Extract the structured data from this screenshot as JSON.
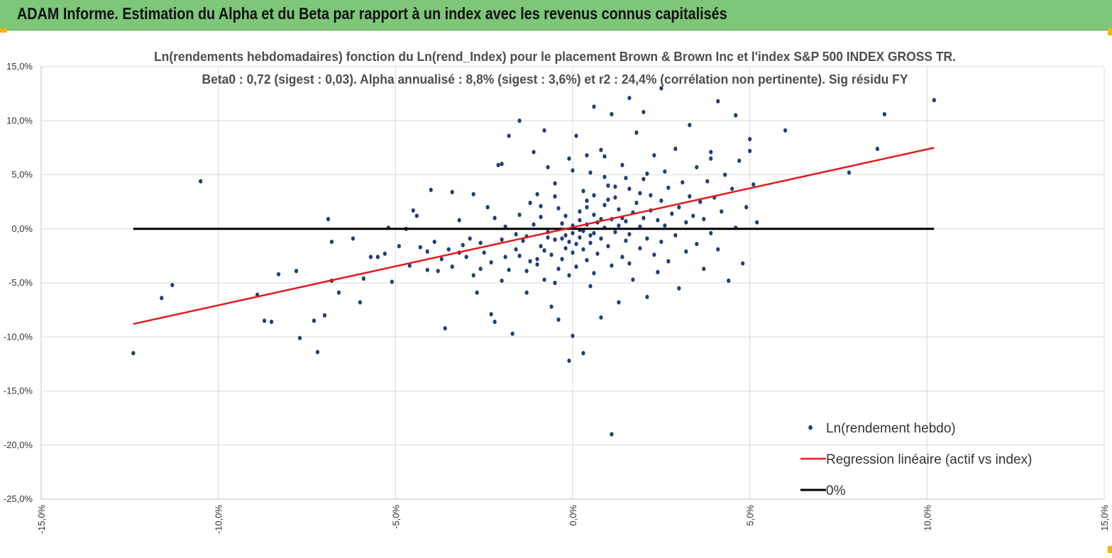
{
  "banner": {
    "title": "ADAM Informe. Estimation du Alpha et du Beta par rapport à un index avec les revenus connus capitalisés"
  },
  "colors": {
    "banner_bg": "#7dc67a",
    "accent_corner": "#f2b800",
    "scatter": "#1f3f78",
    "regression": "#e31a1c",
    "zero_line": "#000000",
    "grid": "#d9d9d9"
  },
  "chart_data": {
    "type": "scatter",
    "title": "Ln(rendements hebdomadaires) fonction du Ln(rend_Index) pour le placement Brown & Brown Inc et l'index S&P 500 INDEX GROSS TR.",
    "subtitle": "Beta0 : 0,72  (sigest : 0,03). Alpha annualisé : 8,8% (sigest : 3,6%) et r2 : 24,4% (corrélation non pertinente). Sig résidu FY",
    "xlabel": "",
    "ylabel": "",
    "xlim": [
      -15,
      15
    ],
    "ylim": [
      -25,
      15
    ],
    "x_ticks": [
      "-15,0%",
      "-10,0%",
      "-5,0%",
      "0,0%",
      "5,0%",
      "10,0%",
      "15,0%"
    ],
    "y_ticks": [
      "15,0%",
      "10,0%",
      "5,0%",
      "0,0%",
      "-5,0%",
      "-10,0%",
      "-15,0%",
      "-20,0%",
      "-25,0%"
    ],
    "grid": "vertical and horizontal",
    "legend_position": "bottom-right",
    "series": [
      {
        "name": "Ln(rendement hebdo)",
        "kind": "scatter",
        "points": [
          [
            -12.4,
            -11.5
          ],
          [
            -11.6,
            -6.4
          ],
          [
            -11.3,
            -5.2
          ],
          [
            -10.5,
            4.4
          ],
          [
            -8.9,
            -6.1
          ],
          [
            -8.7,
            -8.5
          ],
          [
            -8.5,
            -8.6
          ],
          [
            -8.3,
            -4.2
          ],
          [
            -7.8,
            -3.9
          ],
          [
            -7.7,
            -10.1
          ],
          [
            -7.3,
            -8.5
          ],
          [
            -7.2,
            -11.4
          ],
          [
            -7.0,
            -8.0
          ],
          [
            -6.9,
            0.9
          ],
          [
            -6.8,
            -1.2
          ],
          [
            -6.8,
            -4.8
          ],
          [
            -6.6,
            -5.9
          ],
          [
            -6.2,
            -0.9
          ],
          [
            -6.0,
            -6.8
          ],
          [
            -5.9,
            -4.6
          ],
          [
            -5.7,
            -2.6
          ],
          [
            -5.5,
            -2.6
          ],
          [
            -5.3,
            -2.3
          ],
          [
            -5.2,
            0.1
          ],
          [
            -5.1,
            -4.9
          ],
          [
            -4.9,
            -1.6
          ],
          [
            -4.7,
            0.0
          ],
          [
            -4.6,
            -3.4
          ],
          [
            -4.5,
            1.7
          ],
          [
            -4.3,
            -1.7
          ],
          [
            -4.1,
            -2.1
          ],
          [
            -4.1,
            -3.8
          ],
          [
            -4.0,
            3.6
          ],
          [
            -3.9,
            -1.2
          ],
          [
            -3.8,
            -3.9
          ],
          [
            -3.7,
            -2.8
          ],
          [
            -3.6,
            -9.2
          ],
          [
            -3.5,
            -1.9
          ],
          [
            -3.4,
            -3.5
          ],
          [
            -3.2,
            0.8
          ],
          [
            -3.2,
            -2.2
          ],
          [
            -3.0,
            -2.6
          ],
          [
            -2.9,
            -0.9
          ],
          [
            -2.8,
            3.2
          ],
          [
            -2.8,
            -4.3
          ],
          [
            -2.7,
            -5.9
          ],
          [
            -2.6,
            -1.3
          ],
          [
            -2.5,
            -2.2
          ],
          [
            -2.4,
            2.0
          ],
          [
            -2.3,
            -7.9
          ],
          [
            -2.3,
            -3.1
          ],
          [
            -2.2,
            -8.6
          ],
          [
            -2.0,
            -4.8
          ],
          [
            -1.9,
            -2.6
          ],
          [
            -1.9,
            0.2
          ],
          [
            -1.8,
            -3.8
          ],
          [
            -1.7,
            -9.7
          ],
          [
            -1.6,
            -1.9
          ],
          [
            -1.5,
            10.0
          ],
          [
            -1.5,
            -2.5
          ],
          [
            -1.4,
            -1.1
          ],
          [
            -1.3,
            -0.7
          ],
          [
            -1.3,
            -5.9
          ],
          [
            -1.2,
            2.4
          ],
          [
            -1.2,
            -3.0
          ],
          [
            -1.1,
            7.1
          ],
          [
            -1.0,
            -2.8
          ],
          [
            -1.0,
            -3.3
          ],
          [
            -0.9,
            1.1
          ],
          [
            -0.9,
            -1.6
          ],
          [
            -0.8,
            -2.0
          ],
          [
            -0.8,
            -4.7
          ],
          [
            -0.7,
            -0.8
          ],
          [
            -0.7,
            5.7
          ],
          [
            -0.6,
            -2.4
          ],
          [
            -0.6,
            -7.2
          ],
          [
            -0.5,
            3.0
          ],
          [
            -0.5,
            -1.0
          ],
          [
            -0.4,
            -3.7
          ],
          [
            -0.4,
            -8.4
          ],
          [
            -0.3,
            0.5
          ],
          [
            -0.3,
            -2.8
          ],
          [
            -0.2,
            1.2
          ],
          [
            -0.2,
            -0.6
          ],
          [
            -0.2,
            -1.8
          ],
          [
            -0.1,
            6.5
          ],
          [
            -0.1,
            -1.2
          ],
          [
            -0.1,
            -4.3
          ],
          [
            0.0,
            0.3
          ],
          [
            0.0,
            -0.4
          ],
          [
            0.0,
            -2.2
          ],
          [
            0.1,
            8.6
          ],
          [
            0.1,
            -1.4
          ],
          [
            0.1,
            -3.5
          ],
          [
            0.2,
            1.6
          ],
          [
            0.2,
            0.8
          ],
          [
            0.2,
            -0.8
          ],
          [
            0.3,
            3.5
          ],
          [
            0.3,
            -0.2
          ],
          [
            0.3,
            -1.9
          ],
          [
            0.4,
            2.6
          ],
          [
            0.4,
            0.4
          ],
          [
            0.4,
            -2.9
          ],
          [
            0.5,
            5.2
          ],
          [
            0.5,
            -0.6
          ],
          [
            0.5,
            -1.3
          ],
          [
            0.6,
            1.3
          ],
          [
            0.6,
            -4.1
          ],
          [
            0.7,
            0.6
          ],
          [
            0.7,
            -2.3
          ],
          [
            0.8,
            7.3
          ],
          [
            0.8,
            -0.9
          ],
          [
            0.8,
            -8.2
          ],
          [
            0.9,
            2.2
          ],
          [
            0.9,
            0.1
          ],
          [
            1.0,
            4.0
          ],
          [
            1.0,
            -1.6
          ],
          [
            1.1,
            0.9
          ],
          [
            1.1,
            -3.4
          ],
          [
            1.2,
            2.9
          ],
          [
            1.2,
            -0.3
          ],
          [
            1.3,
            1.8
          ],
          [
            1.3,
            -6.8
          ],
          [
            1.4,
            5.9
          ],
          [
            1.4,
            -2.6
          ],
          [
            1.5,
            0.7
          ],
          [
            1.5,
            -1.1
          ],
          [
            1.6,
            3.7
          ],
          [
            1.6,
            -0.5
          ],
          [
            1.7,
            1.5
          ],
          [
            1.7,
            -4.7
          ],
          [
            1.8,
            2.4
          ],
          [
            1.8,
            8.9
          ],
          [
            1.9,
            0.2
          ],
          [
            1.9,
            -1.8
          ],
          [
            2.0,
            4.6
          ],
          [
            2.0,
            1.0
          ],
          [
            2.1,
            -0.9
          ],
          [
            2.1,
            -6.3
          ],
          [
            2.2,
            3.1
          ],
          [
            2.2,
            1.7
          ],
          [
            2.3,
            6.8
          ],
          [
            2.3,
            -2.4
          ],
          [
            2.4,
            0.8
          ],
          [
            2.4,
            -4.0
          ],
          [
            2.5,
            2.6
          ],
          [
            2.5,
            -1.2
          ],
          [
            2.6,
            5.3
          ],
          [
            2.6,
            0.3
          ],
          [
            2.7,
            3.8
          ],
          [
            2.7,
            -3.0
          ],
          [
            2.8,
            1.4
          ],
          [
            2.9,
            7.4
          ],
          [
            2.9,
            -0.6
          ],
          [
            3.0,
            2.0
          ],
          [
            3.0,
            -5.5
          ],
          [
            3.1,
            4.3
          ],
          [
            3.2,
            0.6
          ],
          [
            3.2,
            -2.1
          ],
          [
            3.3,
            3.0
          ],
          [
            3.3,
            9.6
          ],
          [
            3.4,
            1.2
          ],
          [
            3.5,
            -1.4
          ],
          [
            3.5,
            5.7
          ],
          [
            3.6,
            2.5
          ],
          [
            3.7,
            -3.7
          ],
          [
            3.7,
            0.9
          ],
          [
            3.8,
            4.4
          ],
          [
            3.9,
            7.1
          ],
          [
            3.9,
            -0.4
          ],
          [
            4.0,
            2.9
          ],
          [
            4.1,
            -1.9
          ],
          [
            4.1,
            11.8
          ],
          [
            4.2,
            1.6
          ],
          [
            4.3,
            5.0
          ],
          [
            4.4,
            -4.8
          ],
          [
            4.5,
            3.7
          ],
          [
            4.6,
            0.1
          ],
          [
            4.6,
            10.5
          ],
          [
            4.7,
            6.3
          ],
          [
            4.8,
            -3.2
          ],
          [
            4.9,
            2.0
          ],
          [
            5.0,
            8.3
          ],
          [
            5.1,
            4.1
          ],
          [
            5.2,
            0.6
          ],
          [
            -1.8,
            8.6
          ],
          [
            -2.1,
            5.9
          ],
          [
            -3.4,
            3.4
          ],
          [
            -4.4,
            1.2
          ],
          [
            -0.8,
            9.1
          ],
          [
            0.6,
            11.3
          ],
          [
            1.1,
            10.6
          ],
          [
            1.6,
            12.1
          ],
          [
            2.0,
            10.8
          ],
          [
            2.5,
            13.0
          ],
          [
            3.9,
            6.5
          ],
          [
            5.0,
            7.2
          ],
          [
            6.0,
            9.1
          ],
          [
            7.8,
            5.2
          ],
          [
            8.6,
            7.4
          ],
          [
            8.8,
            10.6
          ],
          [
            10.2,
            11.9
          ],
          [
            0.0,
            -9.9
          ],
          [
            0.3,
            -11.5
          ],
          [
            -0.1,
            -12.2
          ],
          [
            1.1,
            -19.0
          ],
          [
            -2.0,
            6.0
          ],
          [
            0.4,
            6.8
          ],
          [
            0.9,
            6.7
          ],
          [
            1.5,
            4.7
          ],
          [
            -0.5,
            4.2
          ],
          [
            0.0,
            5.4
          ],
          [
            0.6,
            3.1
          ],
          [
            1.2,
            3.9
          ],
          [
            1.9,
            3.3
          ],
          [
            -0.9,
            2.1
          ],
          [
            -1.5,
            1.3
          ],
          [
            -0.4,
            1.9
          ],
          [
            0.4,
            2.0
          ],
          [
            1.0,
            2.7
          ],
          [
            -1.1,
            0.4
          ],
          [
            -0.7,
            -0.3
          ],
          [
            0.2,
            -0.1
          ],
          [
            0.8,
            0.9
          ],
          [
            1.4,
            1.0
          ],
          [
            -2.0,
            -1.0
          ],
          [
            -1.6,
            -0.5
          ],
          [
            -0.3,
            -0.9
          ],
          [
            0.6,
            -0.4
          ],
          [
            1.3,
            0.3
          ],
          [
            -2.6,
            -3.7
          ],
          [
            -1.3,
            -3.9
          ],
          [
            -0.5,
            -5.0
          ],
          [
            0.5,
            -5.3
          ],
          [
            1.6,
            -3.2
          ],
          [
            -3.1,
            -1.5
          ],
          [
            -2.2,
            1.0
          ],
          [
            -1.0,
            3.2
          ],
          [
            0.9,
            4.8
          ],
          [
            2.1,
            5.1
          ]
        ]
      },
      {
        "name": "Regression linéaire (actif vs index)",
        "kind": "line",
        "points": [
          [
            -12.4,
            -8.8
          ],
          [
            10.2,
            7.5
          ]
        ]
      },
      {
        "name": "0%",
        "kind": "line",
        "points": [
          [
            -12.4,
            0.0
          ],
          [
            10.2,
            0.0
          ]
        ]
      }
    ]
  }
}
